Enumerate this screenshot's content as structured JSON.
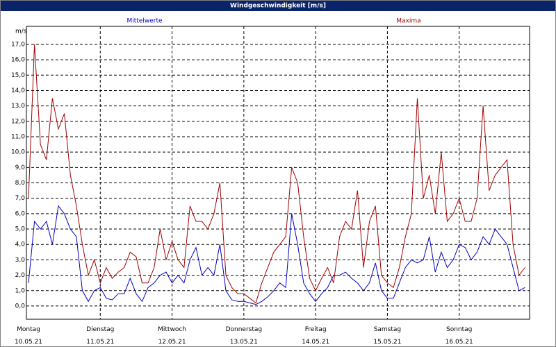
{
  "chart_data": {
    "type": "line",
    "title": "Windgeschwindigkeit [m/s]",
    "y_label": "m/s",
    "x": [
      0,
      2,
      4,
      6,
      8,
      10,
      12,
      14,
      16,
      18,
      20,
      22,
      24,
      26,
      28,
      30,
      32,
      34,
      36,
      38,
      40,
      42,
      44,
      46,
      48,
      50,
      52,
      54,
      56,
      58,
      60,
      62,
      64,
      66,
      68,
      70,
      72,
      74,
      76,
      78,
      80,
      82,
      84,
      86,
      88,
      90,
      92,
      94,
      96,
      98,
      100,
      102,
      104,
      106,
      108,
      110,
      112,
      114,
      116,
      118,
      120,
      122,
      124,
      126,
      128,
      130,
      132,
      134,
      136,
      138,
      140,
      142,
      144,
      146,
      148,
      150,
      152,
      154,
      156,
      158,
      160,
      162,
      164,
      166
    ],
    "xlim": [
      0,
      168
    ],
    "xticks": [
      {
        "value": 0,
        "label": "Montag\n10.05.21"
      },
      {
        "value": 24,
        "label": "Dienstag\n11.05.21"
      },
      {
        "value": 48,
        "label": "Mittwoch\n12.05.21"
      },
      {
        "value": 72,
        "label": "Donnerstag\n13.05.21"
      },
      {
        "value": 96,
        "label": "Freitag\n14.05.21"
      },
      {
        "value": 120,
        "label": "Samstag\n15.05.21"
      },
      {
        "value": 144,
        "label": "Sonntag\n16.05.21"
      }
    ],
    "ylim": [
      -0.86,
      18.17
    ],
    "yticks": [
      {
        "value": 0,
        "label": "0,0"
      },
      {
        "value": 1,
        "label": "1,0"
      },
      {
        "value": 2,
        "label": "2,0"
      },
      {
        "value": 3,
        "label": "3,0"
      },
      {
        "value": 4,
        "label": "4,0"
      },
      {
        "value": 5,
        "label": "5,0"
      },
      {
        "value": 6,
        "label": "6,0"
      },
      {
        "value": 7,
        "label": "7,0"
      },
      {
        "value": 8,
        "label": "8,0"
      },
      {
        "value": 9,
        "label": "9,0"
      },
      {
        "value": 10,
        "label": "10,0"
      },
      {
        "value": 11,
        "label": "11,0"
      },
      {
        "value": 12,
        "label": "12,0"
      },
      {
        "value": 13,
        "label": "13,0"
      },
      {
        "value": 14,
        "label": "14,0"
      },
      {
        "value": 15,
        "label": "15,0"
      },
      {
        "value": 16,
        "label": "16,0"
      },
      {
        "value": 17,
        "label": "17,0"
      }
    ],
    "grid": true,
    "series": [
      {
        "name": "Mittelwerte",
        "color": "#0000c0",
        "values": [
          1.5,
          5.5,
          5.0,
          5.5,
          4.0,
          6.5,
          6.0,
          5.0,
          4.5,
          1.0,
          0.3,
          1.0,
          1.2,
          0.5,
          0.4,
          0.8,
          0.8,
          1.8,
          0.8,
          0.3,
          1.2,
          1.5,
          2.0,
          2.2,
          1.5,
          2.0,
          1.5,
          3.0,
          3.8,
          2.0,
          2.5,
          2.0,
          4.0,
          1.0,
          0.4,
          0.3,
          0.3,
          0.2,
          0.1,
          0.3,
          0.6,
          1.0,
          1.5,
          1.2,
          6.0,
          4.0,
          1.5,
          0.8,
          0.3,
          0.8,
          1.2,
          2.0,
          2.0,
          2.2,
          1.8,
          1.5,
          1.0,
          1.5,
          2.8,
          1.0,
          0.5,
          0.5,
          1.5,
          2.5,
          3.0,
          2.8,
          3.0,
          4.5,
          2.2,
          3.5,
          2.5,
          3.0,
          4.0,
          3.8,
          3.0,
          3.5,
          4.5,
          4.0,
          5.0,
          4.5,
          4.0,
          2.5,
          1.0,
          1.2
        ]
      },
      {
        "name": "Maxima",
        "color": "#a00000",
        "values": [
          7.0,
          17.0,
          10.5,
          9.5,
          13.5,
          11.5,
          12.5,
          8.5,
          6.5,
          4.0,
          2.0,
          3.0,
          1.5,
          2.5,
          1.8,
          2.2,
          2.5,
          3.5,
          3.2,
          1.5,
          1.5,
          2.5,
          5.0,
          3.0,
          4.2,
          3.0,
          2.5,
          6.5,
          5.5,
          5.5,
          5.0,
          6.0,
          8.0,
          2.0,
          1.2,
          0.8,
          0.8,
          0.5,
          0.2,
          1.5,
          2.5,
          3.5,
          4.0,
          4.5,
          9.0,
          8.0,
          4.5,
          1.8,
          1.0,
          1.8,
          2.5,
          1.5,
          4.5,
          5.5,
          5.0,
          7.5,
          2.5,
          5.5,
          6.5,
          2.0,
          1.5,
          1.2,
          2.5,
          4.5,
          6.0,
          13.5,
          7.0,
          8.5,
          6.0,
          10.0,
          5.5,
          6.0,
          7.0,
          5.5,
          5.5,
          7.0,
          13.0,
          7.5,
          8.5,
          9.0,
          9.5,
          4.0,
          2.0,
          2.5
        ]
      }
    ]
  }
}
